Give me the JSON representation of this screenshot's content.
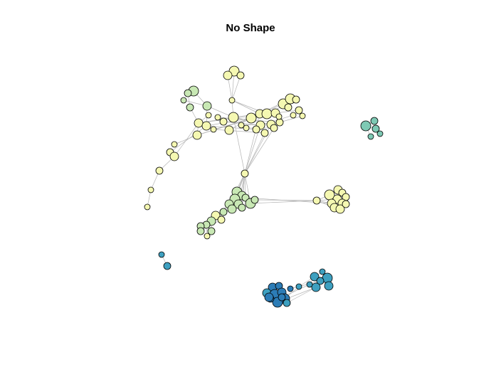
{
  "plot": {
    "title": "No Shape"
  },
  "colors": {
    "edge": "#b4b4b4",
    "node_outline": "#000000",
    "pale_yellow": "#f5f8b2",
    "light_green": "#c8e8b4",
    "teal": "#7ec9b4",
    "cyan_blue": "#3ea0c0",
    "blue": "#2c7cb6"
  }
}
